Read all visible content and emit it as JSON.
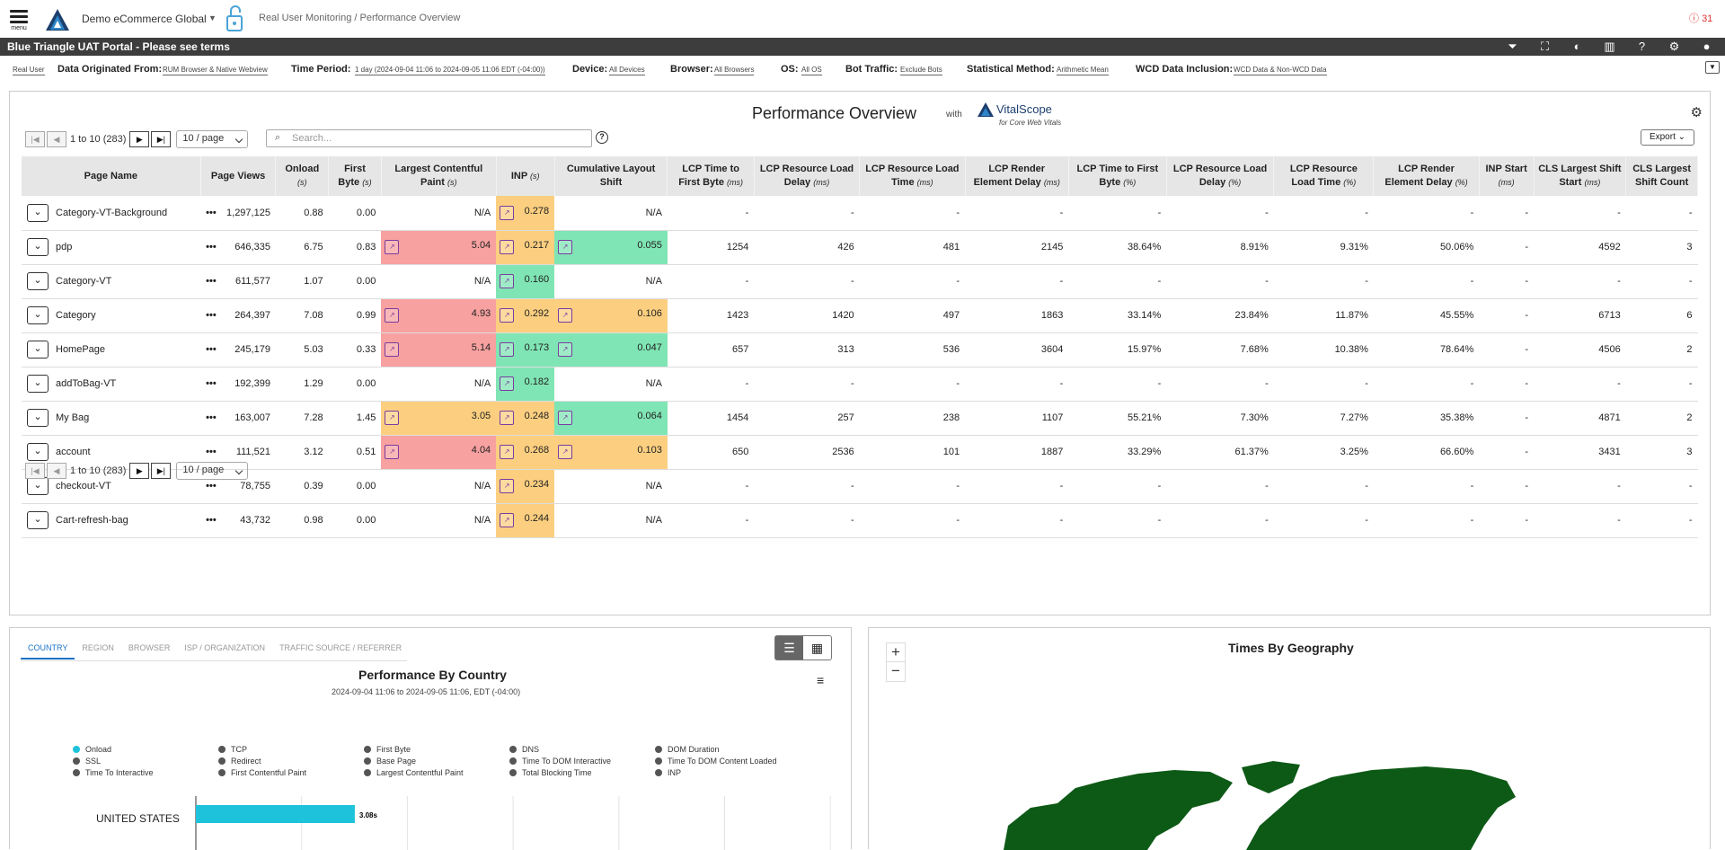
{
  "header": {
    "menu_label": "menu",
    "org": "Demo eCommerce Global",
    "breadcrumb": "Real User Monitoring / Performance Overview",
    "alert_count": "31"
  },
  "banner": {
    "title": "Blue Triangle UAT Portal - Please see terms"
  },
  "filters": {
    "mode": "Real User",
    "origin_label": "Data Originated From:",
    "origin_value": "RUM Browser & Native Webview",
    "period_label": "Time Period:",
    "period_value": "1 day (2024-09-04 11:06 to 2024-09-05 11:06 EDT (-04:00))",
    "device_label": "Device:",
    "device_value": "All Devices",
    "browser_label": "Browser:",
    "browser_value": "All Browsers",
    "os_label": "OS:",
    "os_value": "All OS",
    "bot_label": "Bot Traffic:",
    "bot_value": "Exclude Bots",
    "stat_label": "Statistical Method:",
    "stat_value": "Arithmetic Mean",
    "wcd_label": "WCD Data Inclusion:",
    "wcd_value": "WCD Data & Non-WCD Data"
  },
  "overview": {
    "title": "Performance Overview",
    "with": "with",
    "brand": "VitalScope",
    "brand_sub": "for Core Web Vitals",
    "pager_text": "1 to 10 (283)",
    "page_size": "10 / page",
    "search_placeholder": "Search...",
    "export_label": "Export",
    "columns": [
      {
        "label": "Page Name",
        "unit": ""
      },
      {
        "label": "Page Views",
        "unit": ""
      },
      {
        "label": "Onload",
        "unit": "(s)"
      },
      {
        "label": "First Byte",
        "unit": "(s)"
      },
      {
        "label": "Largest Contentful Paint",
        "unit": "(s)"
      },
      {
        "label": "INP",
        "unit": "(s)"
      },
      {
        "label": "Cumulative Layout Shift",
        "unit": ""
      },
      {
        "label": "LCP Time to First Byte",
        "unit": "(ms)"
      },
      {
        "label": "LCP Resource Load Delay",
        "unit": "(ms)"
      },
      {
        "label": "LCP Resource Load Time",
        "unit": "(ms)"
      },
      {
        "label": "LCP Render Element Delay",
        "unit": "(ms)"
      },
      {
        "label": "LCP Time to First Byte",
        "unit": "(%)"
      },
      {
        "label": "LCP Resource Load Delay",
        "unit": "(%)"
      },
      {
        "label": "LCP Resource Load Time",
        "unit": "(%)"
      },
      {
        "label": "LCP Render Element Delay",
        "unit": "(%)"
      },
      {
        "label": "INP Start",
        "unit": "(ms)"
      },
      {
        "label": "CLS Largest Shift Start",
        "unit": "(ms)"
      },
      {
        "label": "CLS Largest Shift Count",
        "unit": ""
      }
    ],
    "rows": [
      {
        "name": "Category-VT-Background",
        "views": "1,297,125",
        "onload": "0.88",
        "fb": "0.00",
        "lcp": "N/A",
        "lcp_c": "",
        "inp": "0.278",
        "inp_c": "org2",
        "cls": "N/A",
        "cls_c": "",
        "rest": [
          "-",
          "-",
          "-",
          "-",
          "-",
          "-",
          "-",
          "-",
          "-",
          "-",
          "-"
        ]
      },
      {
        "name": "pdp",
        "views": "646,335",
        "onload": "6.75",
        "fb": "0.83",
        "lcp": "5.04",
        "lcp_c": "red",
        "inp": "0.217",
        "inp_c": "org2",
        "cls": "0.055",
        "cls_c": "grn",
        "rest": [
          "1254",
          "426",
          "481",
          "2145",
          "38.64%",
          "8.91%",
          "9.31%",
          "50.06%",
          "-",
          "4592",
          "3"
        ]
      },
      {
        "name": "Category-VT",
        "views": "611,577",
        "onload": "1.07",
        "fb": "0.00",
        "lcp": "N/A",
        "lcp_c": "",
        "inp": "0.160",
        "inp_c": "grn",
        "cls": "N/A",
        "cls_c": "",
        "rest": [
          "-",
          "-",
          "-",
          "-",
          "-",
          "-",
          "-",
          "-",
          "-",
          "-",
          "-"
        ]
      },
      {
        "name": "Category",
        "views": "264,397",
        "onload": "7.08",
        "fb": "0.99",
        "lcp": "4.93",
        "lcp_c": "red",
        "inp": "0.292",
        "inp_c": "org2",
        "cls": "0.106",
        "cls_c": "org2",
        "rest": [
          "1423",
          "1420",
          "497",
          "1863",
          "33.14%",
          "23.84%",
          "11.87%",
          "45.55%",
          "-",
          "6713",
          "6"
        ]
      },
      {
        "name": "HomePage",
        "views": "245,179",
        "onload": "5.03",
        "fb": "0.33",
        "lcp": "5.14",
        "lcp_c": "red",
        "inp": "0.173",
        "inp_c": "grn",
        "cls": "0.047",
        "cls_c": "grn",
        "rest": [
          "657",
          "313",
          "536",
          "3604",
          "15.97%",
          "7.68%",
          "10.38%",
          "78.64%",
          "-",
          "4506",
          "2"
        ]
      },
      {
        "name": "addToBag-VT",
        "views": "192,399",
        "onload": "1.29",
        "fb": "0.00",
        "lcp": "N/A",
        "lcp_c": "",
        "inp": "0.182",
        "inp_c": "grn",
        "cls": "N/A",
        "cls_c": "",
        "rest": [
          "-",
          "-",
          "-",
          "-",
          "-",
          "-",
          "-",
          "-",
          "-",
          "-",
          "-"
        ]
      },
      {
        "name": "My Bag",
        "views": "163,007",
        "onload": "7.28",
        "fb": "1.45",
        "lcp": "3.05",
        "lcp_c": "org2",
        "inp": "0.248",
        "inp_c": "org2",
        "cls": "0.064",
        "cls_c": "grn",
        "rest": [
          "1454",
          "257",
          "238",
          "1107",
          "55.21%",
          "7.30%",
          "7.27%",
          "35.38%",
          "-",
          "4871",
          "2"
        ]
      },
      {
        "name": "account",
        "views": "111,521",
        "onload": "3.12",
        "fb": "0.51",
        "lcp": "4.04",
        "lcp_c": "red",
        "inp": "0.268",
        "inp_c": "org2",
        "cls": "0.103",
        "cls_c": "org2",
        "rest": [
          "650",
          "2536",
          "101",
          "1887",
          "33.29%",
          "61.37%",
          "3.25%",
          "66.60%",
          "-",
          "3431",
          "3"
        ]
      },
      {
        "name": "checkout-VT",
        "views": "78,755",
        "onload": "0.39",
        "fb": "0.00",
        "lcp": "N/A",
        "lcp_c": "",
        "inp": "0.234",
        "inp_c": "org2",
        "cls": "N/A",
        "cls_c": "",
        "rest": [
          "-",
          "-",
          "-",
          "-",
          "-",
          "-",
          "-",
          "-",
          "-",
          "-",
          "-"
        ]
      },
      {
        "name": "Cart-refresh-bag",
        "views": "43,732",
        "onload": "0.98",
        "fb": "0.00",
        "lcp": "N/A",
        "lcp_c": "",
        "inp": "0.244",
        "inp_c": "org2",
        "cls": "N/A",
        "cls_c": "",
        "rest": [
          "-",
          "-",
          "-",
          "-",
          "-",
          "-",
          "-",
          "-",
          "-",
          "-",
          "-"
        ]
      }
    ]
  },
  "country": {
    "tabs": [
      "COUNTRY",
      "REGION",
      "BROWSER",
      "ISP / ORGANIZATION",
      "TRAFFIC SOURCE / REFERRER"
    ],
    "title": "Performance By Country",
    "subtitle": "2024-09-04 11:06 to 2024-09-05 11:06, EDT (-04:00)",
    "legend": [
      {
        "label": "Onload",
        "color": "#1ec2da"
      },
      {
        "label": "TCP",
        "color": "#555"
      },
      {
        "label": "First Byte",
        "color": "#555"
      },
      {
        "label": "DNS",
        "color": "#555"
      },
      {
        "label": "DOM Duration",
        "color": "#555"
      },
      {
        "label": "SSL",
        "color": "#555"
      },
      {
        "label": "Redirect",
        "color": "#555"
      },
      {
        "label": "Base Page",
        "color": "#555"
      },
      {
        "label": "Time To DOM Interactive",
        "color": "#555"
      },
      {
        "label": "Time To DOM Content Loaded",
        "color": "#555"
      },
      {
        "label": "Time To Interactive",
        "color": "#555"
      },
      {
        "label": "First Contentful Paint",
        "color": "#555"
      },
      {
        "label": "Largest Contentful Paint",
        "color": "#555"
      },
      {
        "label": "Total Blocking Time",
        "color": "#555"
      },
      {
        "label": "INP",
        "color": "#555"
      }
    ]
  },
  "chart_data": {
    "type": "bar",
    "categories": [
      "UNITED STATES"
    ],
    "series": [
      {
        "name": "Onload",
        "values": [
          3.08
        ]
      }
    ],
    "value_labels": [
      "3.08s"
    ],
    "xlim": [
      0,
      12.5
    ],
    "color": "#1ec2da"
  },
  "geo": {
    "title": "Times By Geography",
    "zoom_in": "+",
    "zoom_out": "−"
  }
}
